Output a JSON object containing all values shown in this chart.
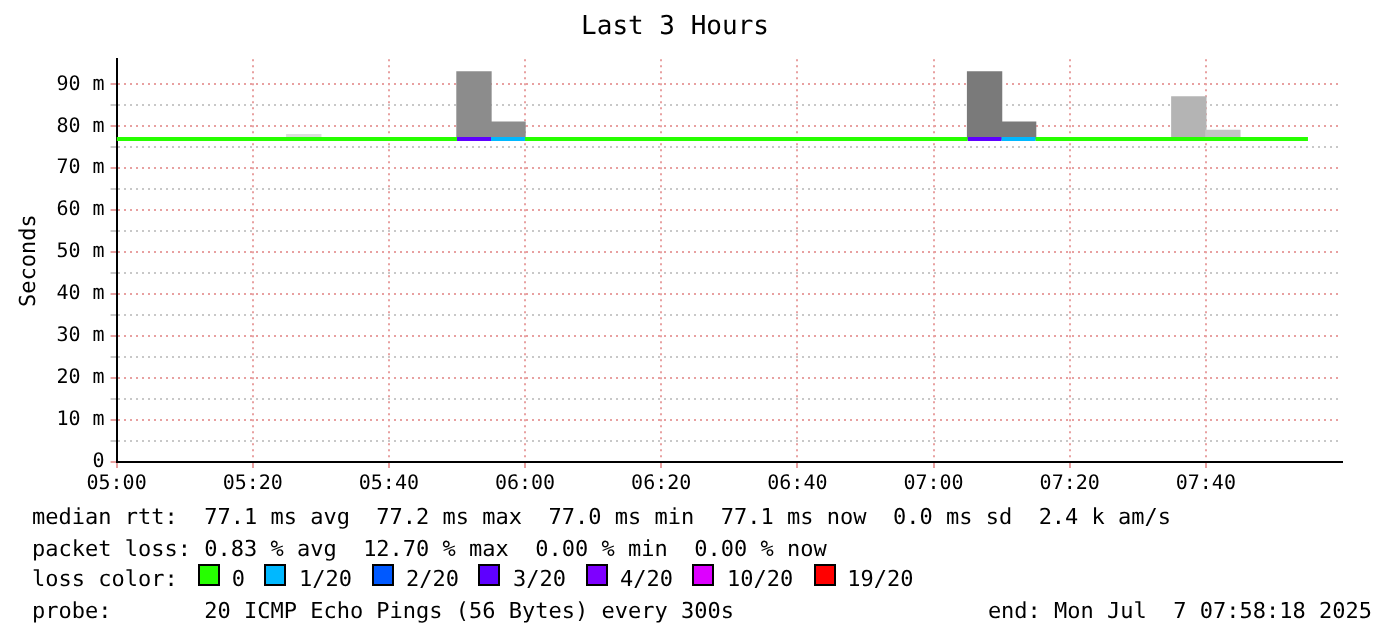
{
  "chart_data": {
    "type": "step",
    "title": "Last 3 Hours",
    "ylabel": "Seconds",
    "legend_title": "loss color:",
    "legend": "bottom",
    "grid": true,
    "marker": "none",
    "x": [
      "2025-07-07T05:00",
      "2025-07-07T05:05",
      "2025-07-07T05:10",
      "2025-07-07T05:15",
      "2025-07-07T05:20",
      "2025-07-07T05:25",
      "2025-07-07T05:30",
      "2025-07-07T05:35",
      "2025-07-07T05:40",
      "2025-07-07T05:45",
      "2025-07-07T05:50",
      "2025-07-07T05:55",
      "2025-07-07T06:00",
      "2025-07-07T06:05",
      "2025-07-07T06:10",
      "2025-07-07T06:15",
      "2025-07-07T06:20",
      "2025-07-07T06:25",
      "2025-07-07T06:30",
      "2025-07-07T06:35",
      "2025-07-07T06:40",
      "2025-07-07T06:45",
      "2025-07-07T06:50",
      "2025-07-07T06:55",
      "2025-07-07T07:00",
      "2025-07-07T07:05",
      "2025-07-07T07:10",
      "2025-07-07T07:15",
      "2025-07-07T07:20",
      "2025-07-07T07:25",
      "2025-07-07T07:30",
      "2025-07-07T07:35",
      "2025-07-07T07:40",
      "2025-07-07T07:45",
      "2025-07-07T07:50",
      "2025-07-07T07:55"
    ],
    "xlim": [
      "2025-07-07T05:00",
      "2025-07-07T08:00"
    ],
    "xticks": [
      {
        "value": "2025-07-07T05:00",
        "label": "05:00"
      },
      {
        "value": "2025-07-07T05:20",
        "label": "05:20"
      },
      {
        "value": "2025-07-07T05:40",
        "label": "05:40"
      },
      {
        "value": "2025-07-07T06:00",
        "label": "06:00"
      },
      {
        "value": "2025-07-07T06:20",
        "label": "06:20"
      },
      {
        "value": "2025-07-07T06:40",
        "label": "06:40"
      },
      {
        "value": "2025-07-07T07:00",
        "label": "07:00"
      },
      {
        "value": "2025-07-07T07:20",
        "label": "07:20"
      },
      {
        "value": "2025-07-07T07:40",
        "label": "07:40"
      }
    ],
    "ylim": [
      0,
      96
    ],
    "yticks": [
      0,
      {
        "value": 5,
        "label": null
      },
      {
        "value": 10,
        "label": "10 m"
      },
      {
        "value": 15,
        "label": null
      },
      {
        "value": 20,
        "label": "20 m"
      },
      {
        "value": 25,
        "label": null
      },
      {
        "value": 30,
        "label": "30 m"
      },
      {
        "value": 35,
        "label": null
      },
      {
        "value": 40,
        "label": "40 m"
      },
      {
        "value": 45,
        "label": null
      },
      {
        "value": 50,
        "label": "50 m"
      },
      {
        "value": 55,
        "label": null
      },
      {
        "value": 60,
        "label": "60 m"
      },
      {
        "value": 65,
        "label": null
      },
      {
        "value": 70,
        "label": "70 m"
      },
      {
        "value": 75,
        "label": null
      },
      {
        "value": 80,
        "label": "80 m"
      },
      {
        "value": 85,
        "label": null
      },
      {
        "value": 90,
        "label": "90 m"
      }
    ],
    "series": [
      {
        "type": "bar",
        "x": [
          "2025-07-07T05:27:30",
          "2025-07-07T05:52:30",
          "2025-07-07T05:57:30",
          "2025-07-07T07:07:30",
          "2025-07-07T07:12:30",
          "2025-07-07T07:37:30",
          "2025-07-07T07:42:30"
        ],
        "base": [
          77,
          77,
          77,
          77,
          77,
          77,
          77
        ],
        "values": [
          1,
          16,
          4,
          16,
          4,
          10,
          2
        ],
        "colors": [
          "#dddddd",
          "#8c8c8c",
          "#8c8c8c",
          "#7a7a7a",
          "#7a7a7a",
          "#b4b4b4",
          "#c4c4c4"
        ]
      },
      {
        "name": "0",
        "color": "#26ff00",
        "values": [
          77,
          77,
          77,
          77,
          77,
          77,
          77,
          77,
          77,
          77,
          77,
          null,
          77,
          77,
          77,
          77,
          77,
          77,
          77,
          77,
          77,
          77,
          77,
          77,
          77,
          77,
          null,
          77,
          77,
          77,
          77,
          77,
          77,
          77,
          77,
          77
        ]
      },
      {
        "name": "1/20",
        "color": "#00b8ff",
        "values": [
          null,
          null,
          null,
          null,
          null,
          null,
          null,
          null,
          null,
          null,
          null,
          77,
          77,
          null,
          null,
          null,
          null,
          null,
          null,
          null,
          null,
          null,
          null,
          null,
          null,
          null,
          77,
          77,
          null,
          null,
          null,
          null,
          null,
          null,
          null,
          null
        ]
      },
      {
        "name": "2/20",
        "color": "#0059ff",
        "values": [
          null,
          null,
          null,
          null,
          null,
          null,
          null,
          null,
          null,
          null,
          null,
          null,
          null,
          null,
          null,
          null,
          null,
          null,
          null,
          null,
          null,
          null,
          null,
          null,
          null,
          null,
          null,
          null,
          null,
          null,
          null,
          null,
          null,
          null,
          null,
          null
        ]
      },
      {
        "name": "3/20",
        "color": "#5e00ff",
        "values": [
          null,
          null,
          null,
          null,
          null,
          null,
          null,
          null,
          null,
          null,
          77,
          77,
          null,
          null,
          null,
          null,
          null,
          null,
          null,
          null,
          null,
          null,
          null,
          null,
          null,
          77,
          77,
          null,
          null,
          null,
          null,
          null,
          null,
          null,
          null,
          null
        ]
      },
      {
        "name": "4/20",
        "color": "#7e00ff",
        "values": [
          null,
          null,
          null,
          null,
          null,
          null,
          null,
          null,
          null,
          null,
          null,
          null,
          null,
          null,
          null,
          null,
          null,
          null,
          null,
          null,
          null,
          null,
          null,
          null,
          null,
          null,
          null,
          null,
          null,
          null,
          null,
          null,
          null,
          null,
          null,
          null
        ]
      },
      {
        "name": "10/20",
        "color": "#dd00ff",
        "values": [
          null,
          null,
          null,
          null,
          null,
          null,
          null,
          null,
          null,
          null,
          null,
          null,
          null,
          null,
          null,
          null,
          null,
          null,
          null,
          null,
          null,
          null,
          null,
          null,
          null,
          null,
          null,
          null,
          null,
          null,
          null,
          null,
          null,
          null,
          null,
          null
        ]
      },
      {
        "name": "19/20",
        "color": "#ff0000",
        "values": [
          null,
          null,
          null,
          null,
          null,
          null,
          null,
          null,
          null,
          null,
          null,
          null,
          null,
          null,
          null,
          null,
          null,
          null,
          null,
          null,
          null,
          null,
          null,
          null,
          null,
          null,
          null,
          null,
          null,
          null,
          null,
          null,
          null,
          null,
          null,
          null
        ]
      }
    ],
    "annotations": [
      "median rtt:  77.1 ms avg  77.2 ms max  77.0 ms min  77.1 ms now  0.0 ms sd  2.4 k am/s",
      "packet loss: 0.83 % avg  12.70 % max  0.00 % min  0.00 % now",
      "probe:       20 ICMP Echo Pings (56 Bytes) every 300s",
      "end: Mon Jul  7 07:58:18 2025"
    ]
  }
}
